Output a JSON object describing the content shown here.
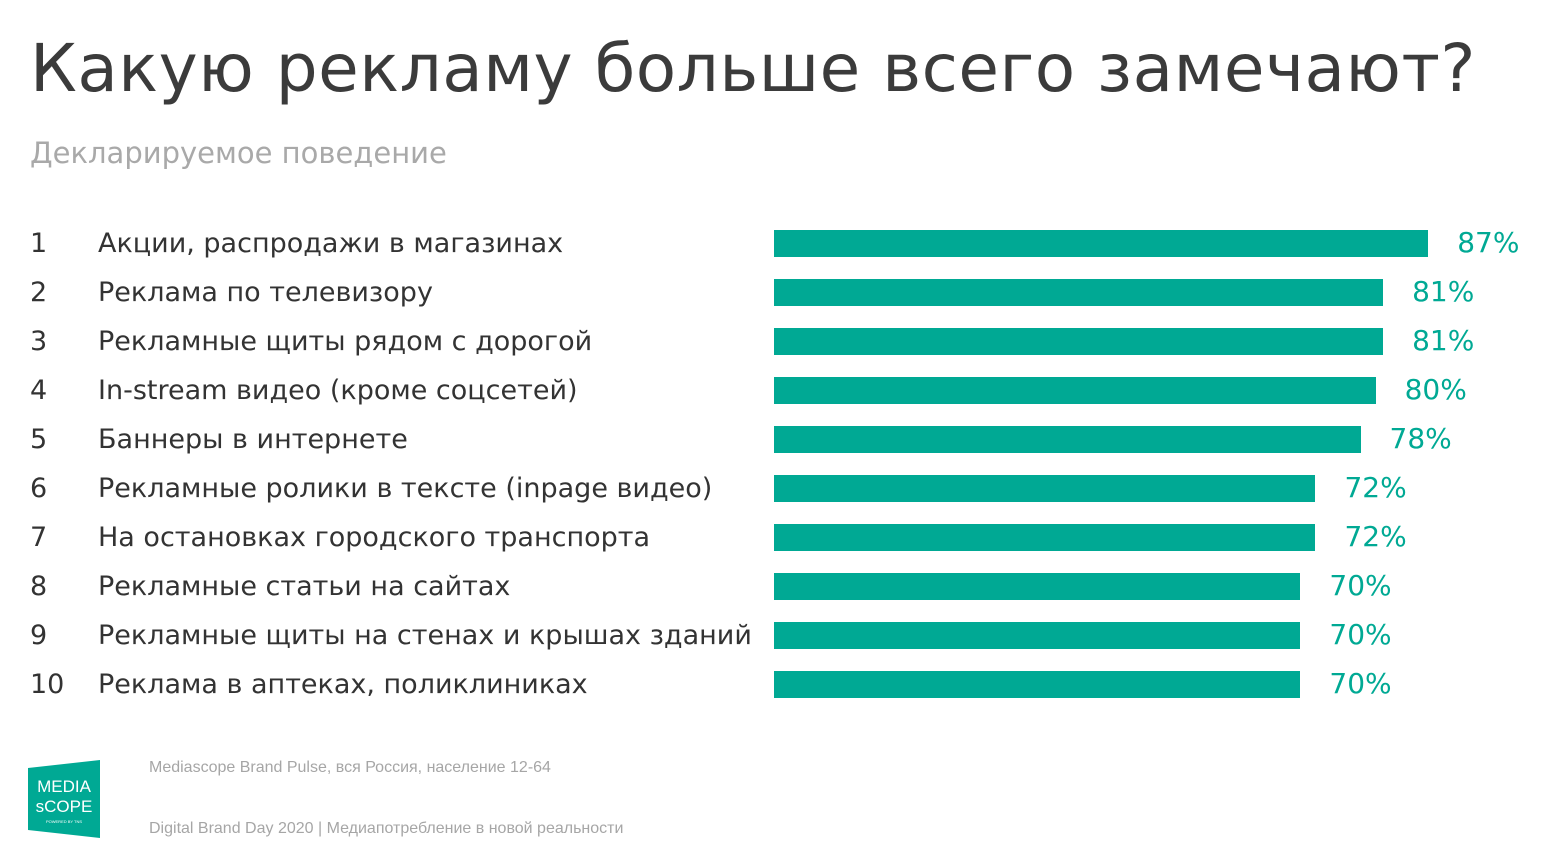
{
  "header": {
    "title": "Какую рекламу больше всего замечают?",
    "subtitle": "Декларируемое поведение"
  },
  "chart_data": {
    "type": "bar",
    "orientation": "horizontal",
    "title": "Какую рекламу больше всего замечают?",
    "subtitle": "Декларируемое поведение",
    "ranks": [
      "1",
      "2",
      "3",
      "4",
      "5",
      "6",
      "7",
      "8",
      "9",
      "10"
    ],
    "categories": [
      "Акции, распродажи в магазинах",
      "Реклама по телевизору",
      "Рекламные щиты рядом с дорогой",
      "In-stream видео (кроме соцсетей)",
      "Баннеры в интернете",
      "Рекламные ролики в тексте (inpage видео)",
      "На остановках городского транспорта",
      "Рекламные статьи на сайтах",
      "Рекламные щиты на стенах и крышах зданий",
      "Реклама в аптеках, поликлиниках"
    ],
    "values": [
      87,
      81,
      81,
      80,
      78,
      72,
      72,
      70,
      70,
      70
    ],
    "value_labels": [
      "87%",
      "81%",
      "81%",
      "80%",
      "78%",
      "72%",
      "72%",
      "70%",
      "70%",
      "70%"
    ],
    "unit": "%",
    "xlim": [
      0,
      100
    ],
    "color": "#00a994"
  },
  "footer": {
    "source": "Mediascope Brand Pulse, вся Россия, население 12-64",
    "event": "Digital Brand Day 2020 | Медиапотребление в новой реальности"
  },
  "logo": {
    "line1": "MEDIA",
    "line2": "sCOPE",
    "tagline": "POWERED BY TNS"
  }
}
